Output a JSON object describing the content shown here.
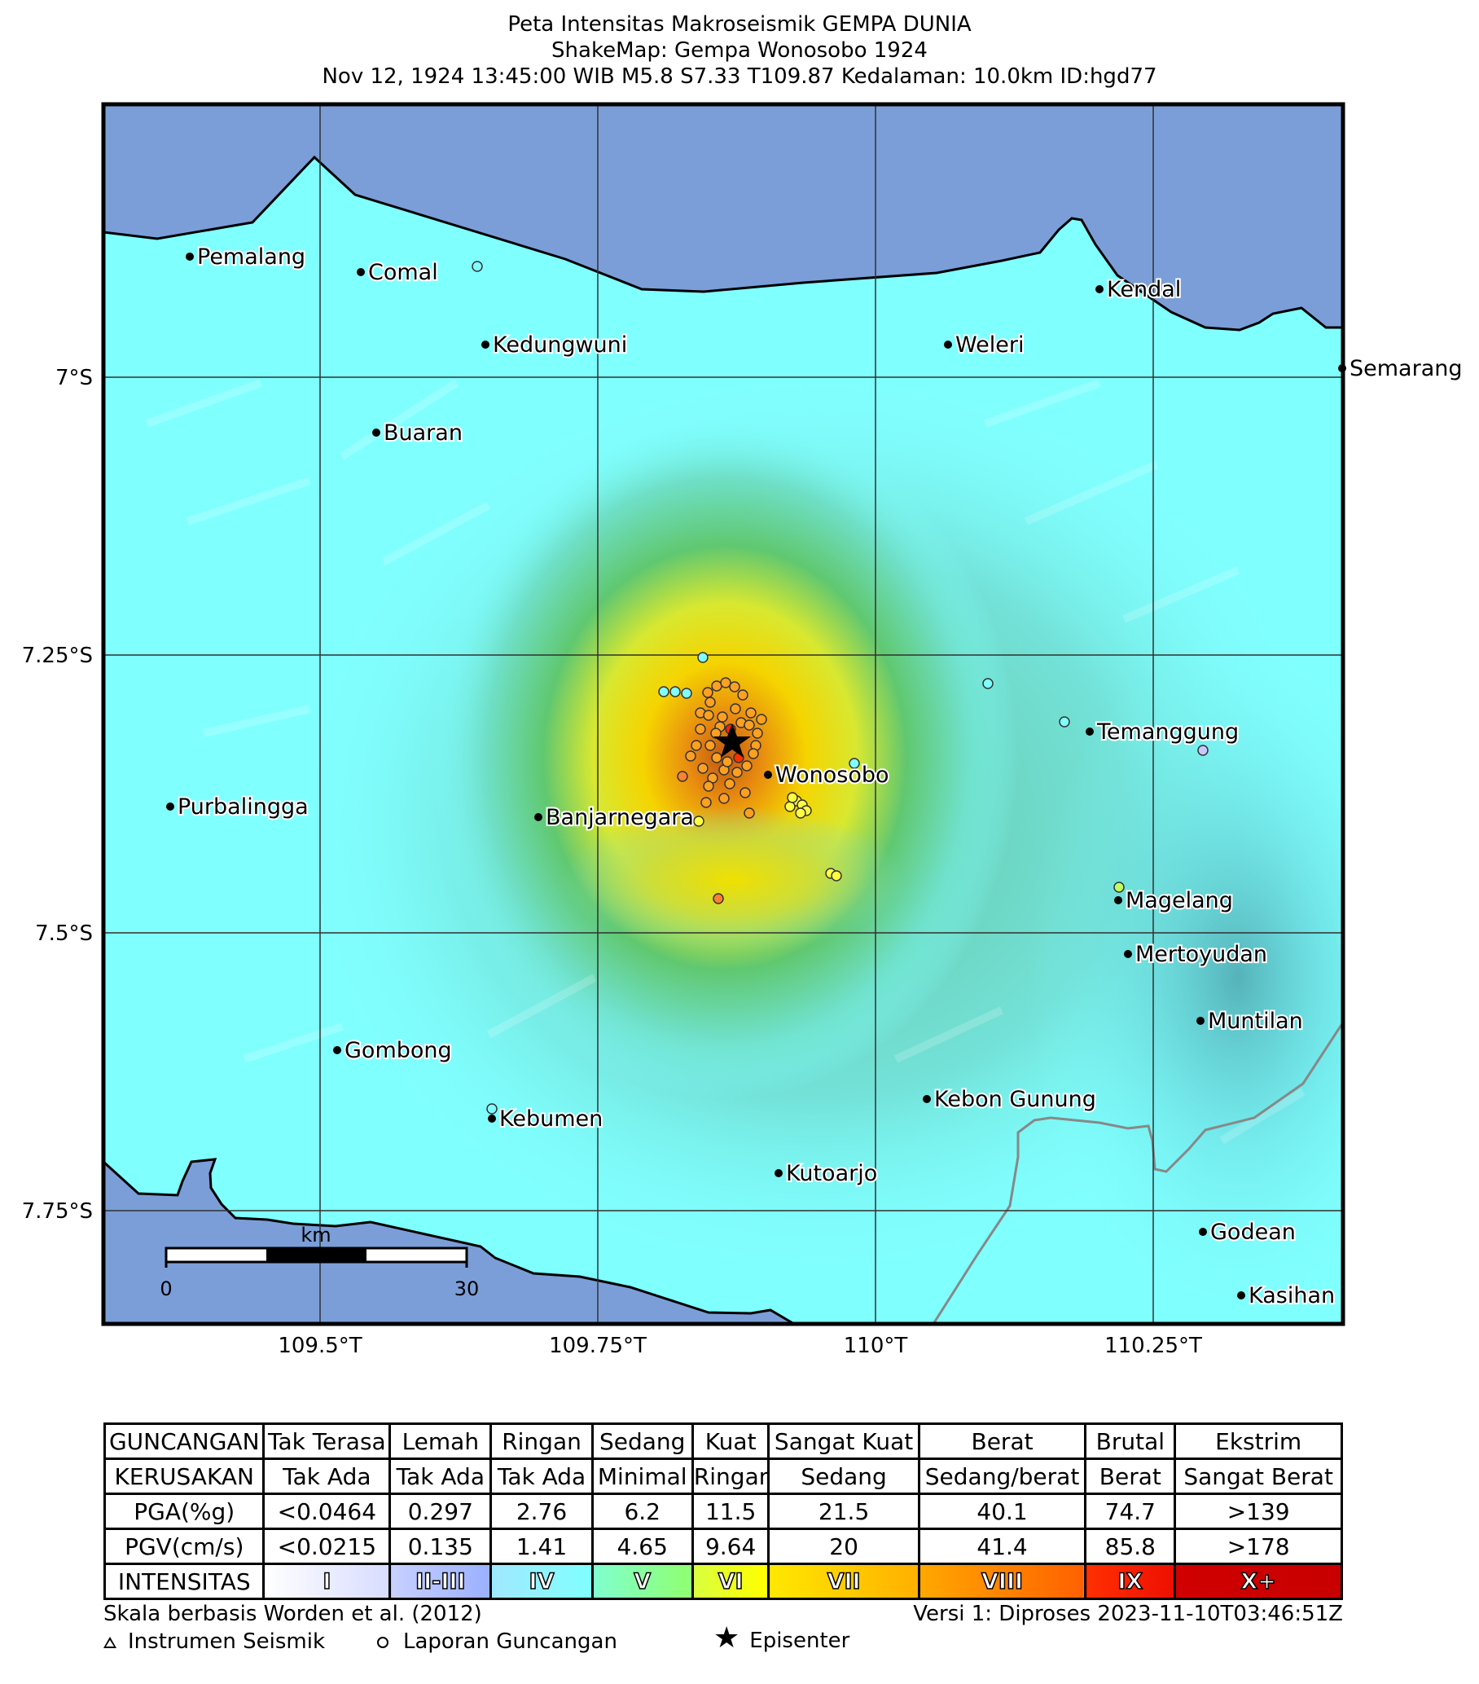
{
  "header": {
    "line1": "Peta Intensitas Makroseismik GEMPA DUNIA",
    "line2": "ShakeMap: Gempa Wonosobo 1924",
    "line3": "Nov 12, 1924 13:45:00 WIB M5.8 S7.33 T109.87 Kedalaman: 10.0km ID:hgd77"
  },
  "map": {
    "lat_labels": [
      "7°S",
      "7.25°S",
      "7.5°S",
      "7.75°S"
    ],
    "lon_labels": [
      "109.5°T",
      "109.75°T",
      "110°T",
      "110.25°T"
    ],
    "scale_bar": {
      "unit": "km",
      "start": "0",
      "end": "30"
    },
    "cities": [
      "Pemalang",
      "Comal",
      "Kedungwuni",
      "Weleri",
      "Kendal",
      "Semarang",
      "Buaran",
      "Temanggung",
      "Wonosobo",
      "Purbalingga",
      "Banjarnegara",
      "Magelang",
      "Mertoyudan",
      "Muntilan",
      "Gombong",
      "Kebon Gunung",
      "Kebumen",
      "Kutoarjo",
      "Godean",
      "Kasihan"
    ],
    "colors": {
      "sea": "#7b9ed8",
      "land_base": "#80ffff",
      "shaking_peak": "#c06010",
      "border": "#808080"
    }
  },
  "table": {
    "row_labels": [
      "GUNCANGAN",
      "KERUSAKAN",
      "PGA(%g)",
      "PGV(cm/s)",
      "INTENSITAS"
    ],
    "guncangan": [
      "Tak Terasa",
      "Lemah",
      "Ringan",
      "Sedang",
      "Kuat",
      "Sangat Kuat",
      "Berat",
      "Brutal",
      "Ekstrim"
    ],
    "kerusakan": [
      "Tak Ada",
      "Tak Ada",
      "Tak Ada",
      "Minimal",
      "Ringan",
      "Sedang",
      "Sedang/berat",
      "Berat",
      "Sangat Berat"
    ],
    "pga": [
      "<0.0464",
      "0.297",
      "2.76",
      "6.2",
      "11.5",
      "21.5",
      "40.1",
      "74.7",
      ">139"
    ],
    "pgv": [
      "<0.0215",
      "0.135",
      "1.41",
      "4.65",
      "9.64",
      "20",
      "41.4",
      "85.8",
      ">178"
    ],
    "intensitas": [
      "I",
      "II-III",
      "IV",
      "V",
      "VI",
      "VII",
      "VIII",
      "IX",
      "X+"
    ],
    "intensity_colors": [
      [
        "#ffffff",
        "#d8dcff"
      ],
      [
        "#c8d0ff",
        "#9ab0ff"
      ],
      [
        "#a0e8ff",
        "#80ffff"
      ],
      [
        "#80ffd0",
        "#90ff70"
      ],
      [
        "#d8ff40",
        "#ffff00"
      ],
      [
        "#ffe800",
        "#ffb000"
      ],
      [
        "#ffa800",
        "#ff6000"
      ],
      [
        "#ff3000",
        "#ee1000"
      ],
      [
        "#d00000",
        "#c80000"
      ]
    ]
  },
  "footer": {
    "scale_note": "Skala berbasis Worden et al. (2012)",
    "version": "Versi 1: Diproses 2023-11-10T03:46:51Z",
    "legend_instrument": "Instrumen Seismik",
    "legend_report": "Laporan Guncangan",
    "legend_epicenter": "Episenter"
  }
}
